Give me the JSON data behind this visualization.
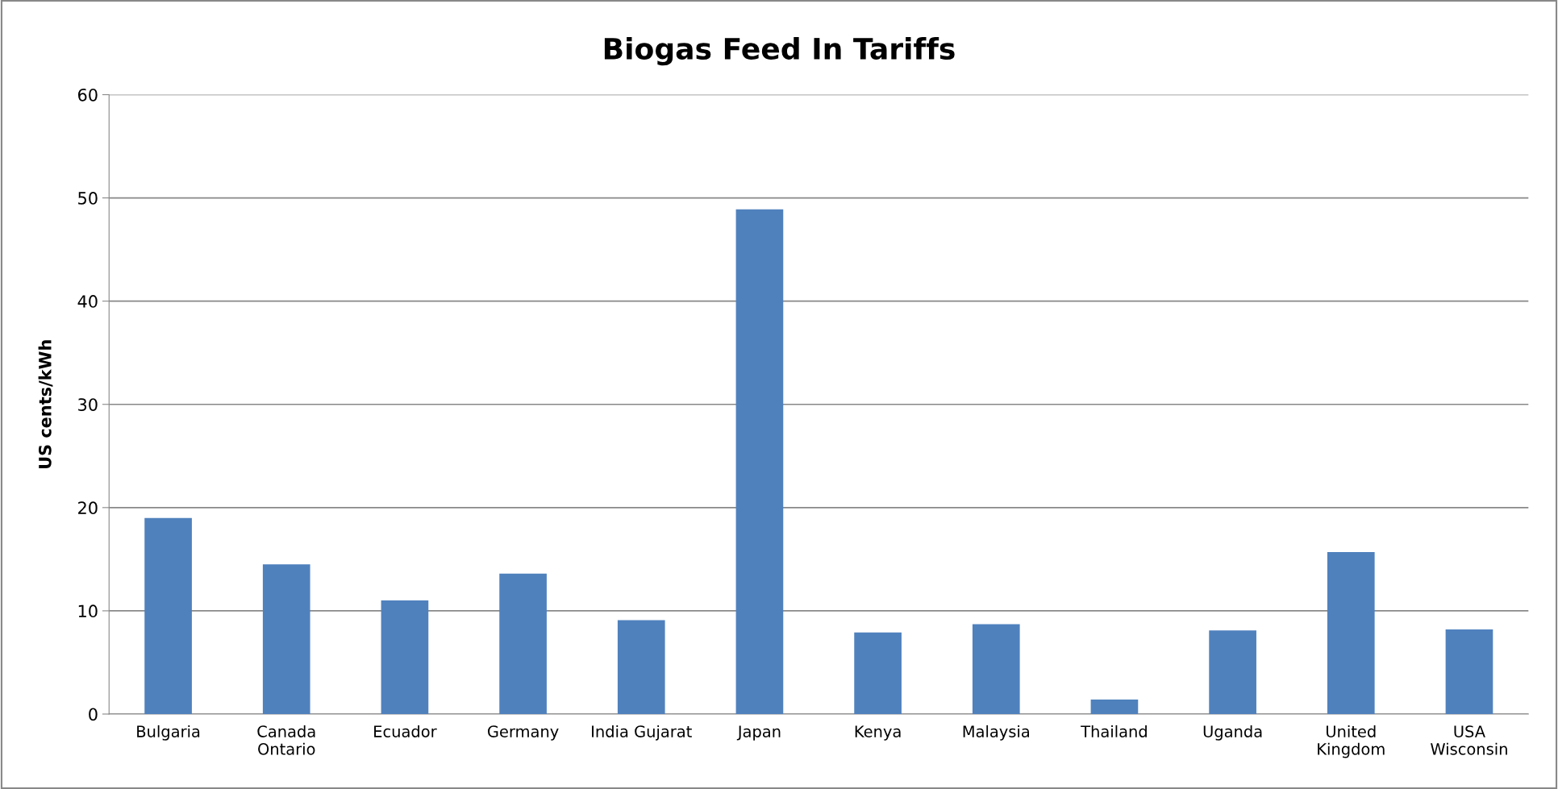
{
  "chart_data": {
    "type": "bar",
    "title": "Biogas Feed In Tariffs",
    "ylabel": "US cents/kWh",
    "categories": [
      "Bulgaria",
      "Canada\nOntario",
      "Ecuador",
      "Germany",
      "India Gujarat",
      "Japan",
      "Kenya",
      "Malaysia",
      "Thailand",
      "Uganda",
      "United\nKingdom",
      "USA\nWisconsin"
    ],
    "values": [
      19.0,
      14.5,
      11.0,
      13.6,
      9.1,
      48.9,
      7.9,
      8.7,
      1.4,
      8.1,
      15.7,
      8.2
    ],
    "color": "#4f81bd",
    "ylim": [
      0,
      60
    ],
    "yticks": [
      0,
      10,
      20,
      30,
      40,
      50,
      60
    ],
    "grid": "y",
    "legend": false
  }
}
